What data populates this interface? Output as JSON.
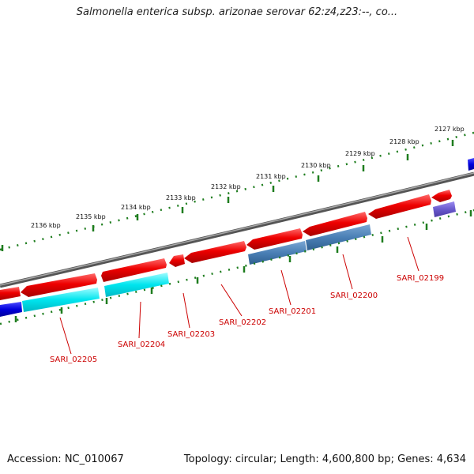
{
  "title": "Salmonella enterica subsp. arizonae serovar 62:z4,z23:--, co...",
  "footer": {
    "accession": "Accession: NC_010067",
    "stats": "Topology: circular; Length: 4,600,800 bp; Genes: 4,634"
  },
  "colors": {
    "backbone": "#7a7a7a",
    "cds_forward": "#e00000",
    "cds_reverse": "#e00000",
    "cog_cyan": "#00e5ee",
    "cog_steelblue": "#4a7fb5",
    "cog_blue": "#0000dd",
    "cog_purple": "#6a5acd",
    "scale_ticks": "#1e7d1e",
    "gene_label": "#cc0000"
  },
  "scale_labels": [
    "2136 kbp",
    "2135 kbp",
    "2134 kbp",
    "2133 kbp",
    "2132 kbp",
    "2131 kbp",
    "2130 kbp",
    "2129 kbp",
    "2128 kbp",
    "2127 kbp"
  ],
  "genes": [
    "SARI_02205",
    "SARI_02204",
    "SARI_02203",
    "SARI_02202",
    "SARI_02201",
    "SARI_02200",
    "SARI_02199"
  ]
}
